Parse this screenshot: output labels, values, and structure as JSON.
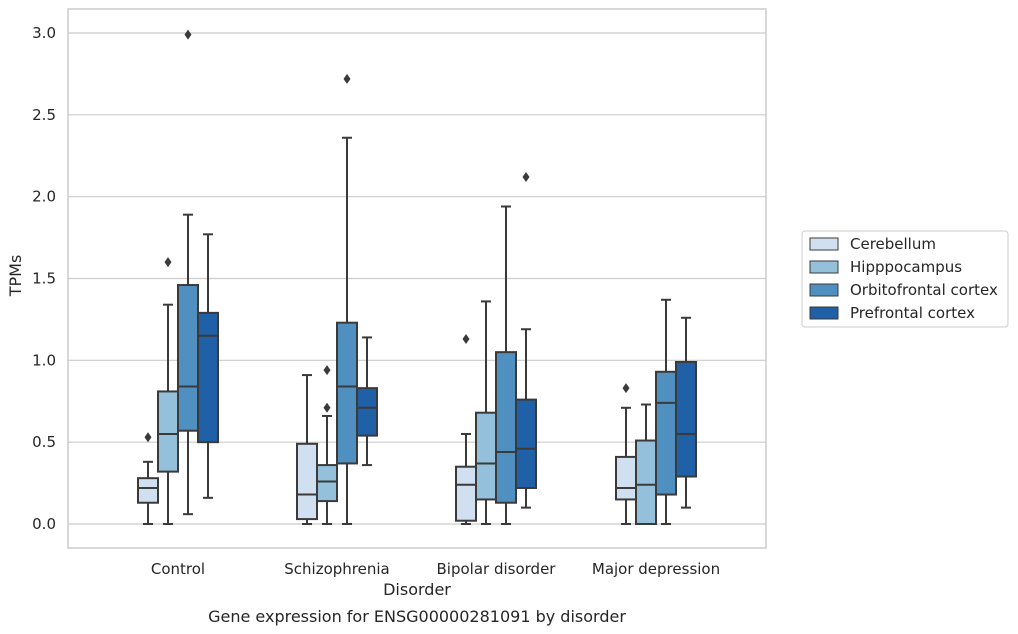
{
  "caption": "Gene expression for ENSG00000281091 by disorder",
  "colors": {
    "grid": "#cccccc",
    "frame": "#cccccc",
    "line": "#3a3a3a",
    "series": [
      "#d1e0f0",
      "#94c0db",
      "#4f90c1",
      "#2060a7"
    ]
  },
  "chart_data": {
    "type": "box",
    "xlabel": "Disorder",
    "ylabel": "TPMs",
    "ylim": [
      -0.15,
      3.15
    ],
    "yticks": [
      "0.0",
      "0.5",
      "1.0",
      "1.5",
      "2.0",
      "2.5",
      "3.0"
    ],
    "grid": "horizontal",
    "legend_position": "right",
    "categories": [
      "Control",
      "Schizophrenia",
      "Bipolar disorder",
      "Major depression"
    ],
    "series": [
      {
        "name": "Cerebellum",
        "boxes": [
          {
            "whislo": 0.0,
            "q1": 0.13,
            "med": 0.22,
            "q3": 0.28,
            "whishi": 0.38,
            "fliers": [
              0.53
            ]
          },
          {
            "whislo": 0.0,
            "q1": 0.03,
            "med": 0.18,
            "q3": 0.49,
            "whishi": 0.91,
            "fliers": []
          },
          {
            "whislo": 0.0,
            "q1": 0.02,
            "med": 0.24,
            "q3": 0.35,
            "whishi": 0.55,
            "fliers": [
              1.13
            ]
          },
          {
            "whislo": 0.0,
            "q1": 0.15,
            "med": 0.22,
            "q3": 0.41,
            "whishi": 0.71,
            "fliers": [
              0.83
            ]
          }
        ]
      },
      {
        "name": "Hipppocampus",
        "boxes": [
          {
            "whislo": 0.0,
            "q1": 0.32,
            "med": 0.55,
            "q3": 0.81,
            "whishi": 1.34,
            "fliers": [
              1.6
            ]
          },
          {
            "whislo": 0.0,
            "q1": 0.14,
            "med": 0.26,
            "q3": 0.36,
            "whishi": 0.66,
            "fliers": [
              0.71,
              0.94
            ]
          },
          {
            "whislo": 0.0,
            "q1": 0.15,
            "med": 0.37,
            "q3": 0.68,
            "whishi": 1.36,
            "fliers": []
          },
          {
            "whislo": 0.0,
            "q1": 0.0,
            "med": 0.24,
            "q3": 0.51,
            "whishi": 0.73,
            "fliers": []
          }
        ]
      },
      {
        "name": "Orbitofrontal cortex",
        "boxes": [
          {
            "whislo": 0.06,
            "q1": 0.57,
            "med": 0.84,
            "q3": 1.46,
            "whishi": 1.89,
            "fliers": [
              2.99
            ]
          },
          {
            "whislo": 0.0,
            "q1": 0.37,
            "med": 0.84,
            "q3": 1.23,
            "whishi": 2.36,
            "fliers": [
              2.72
            ]
          },
          {
            "whislo": 0.0,
            "q1": 0.13,
            "med": 0.44,
            "q3": 1.05,
            "whishi": 1.94,
            "fliers": []
          },
          {
            "whislo": 0.0,
            "q1": 0.18,
            "med": 0.74,
            "q3": 0.93,
            "whishi": 1.37,
            "fliers": []
          }
        ]
      },
      {
        "name": "Prefrontal cortex",
        "boxes": [
          {
            "whislo": 0.16,
            "q1": 0.5,
            "med": 1.15,
            "q3": 1.29,
            "whishi": 1.77,
            "fliers": []
          },
          {
            "whislo": 0.36,
            "q1": 0.54,
            "med": 0.71,
            "q3": 0.83,
            "whishi": 1.14,
            "fliers": []
          },
          {
            "whislo": 0.1,
            "q1": 0.22,
            "med": 0.46,
            "q3": 0.76,
            "whishi": 1.19,
            "fliers": [
              2.12
            ]
          },
          {
            "whislo": 0.1,
            "q1": 0.29,
            "med": 0.55,
            "q3": 0.99,
            "whishi": 1.26,
            "fliers": []
          }
        ]
      }
    ]
  }
}
